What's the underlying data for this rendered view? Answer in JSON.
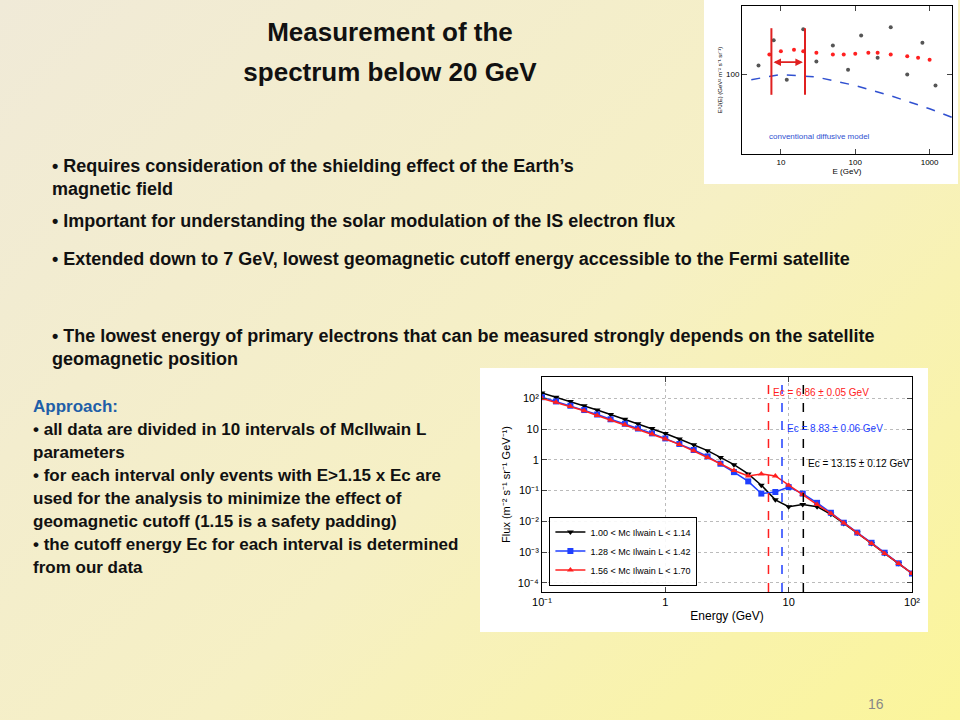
{
  "slide": {
    "title": [
      "Measurement of the",
      "spectrum below 20 GeV"
    ],
    "bullets": [
      "Requires consideration of the shielding effect of the Earth’s magnetic field",
      "Important for understanding the solar modulation of the IS electron flux",
      "Extended down to 7 GeV, lowest geomagnetic cutoff energy accessible to the Fermi satellite",
      "The lowest energy of primary electrons that can be measured strongly depends on the satellite geomagnetic position"
    ],
    "approach": {
      "heading": "Approach:",
      "items": [
        "all data are divided in 10 intervals of McIlwain L parameters",
        "for each interval only events with E>1.15 x Ec are used for the analysis to minimize the effect of geomagnetic cutoff (1.15 is a safety padding)",
        "the cutoff energy Ec for each interval is determined from our data"
      ]
    },
    "page": "16"
  },
  "chart_data": [
    {
      "type": "line",
      "x_label": "Energy (GeV)",
      "y_label": "Flux (m⁻² s⁻¹ sr⁻¹ GeV⁻¹)",
      "log": true,
      "grid": true,
      "legend": "lower left",
      "xlim": [
        0.1,
        100
      ],
      "xticks": [
        {
          "value": 0.1,
          "label": "10⁻¹"
        },
        1,
        10,
        {
          "value": 100,
          "label": "10²"
        }
      ],
      "ylim": [
        5e-05,
        500
      ],
      "yticks": [
        {
          "value": 0.0001,
          "label": "10⁻⁴"
        },
        {
          "value": 0.001,
          "label": "10⁻³"
        },
        {
          "value": 0.01,
          "label": "10⁻²"
        },
        {
          "value": 0.1,
          "label": "10⁻¹"
        },
        1,
        10,
        {
          "value": 100,
          "label": "10²"
        }
      ],
      "x": [
        0.1,
        0.13,
        0.17,
        0.22,
        0.28,
        0.36,
        0.47,
        0.6,
        0.78,
        1,
        1.3,
        1.7,
        2.2,
        2.8,
        3.6,
        4.7,
        6,
        7.8,
        10,
        13,
        17,
        22,
        28,
        36,
        47,
        60,
        78,
        100
      ],
      "series": [
        {
          "name": "1.00 < Mc Ilwain L < 1.14",
          "color": "#000000",
          "marker": "triangle-down",
          "line_style": "solid",
          "values": [
            150,
            110,
            80,
            58,
            42,
            30,
            21,
            15,
            10.5,
            7.2,
            4.8,
            3.1,
            2.0,
            1.2,
            0.7,
            0.35,
            0.15,
            0.05,
            0.03,
            0.035,
            0.03,
            0.017,
            0.0085,
            0.0042,
            0.0019,
            0.0009,
            0.00042,
            0.0002
          ]
        },
        {
          "name": "1.28 < Mc Ilwain L < 1.42",
          "color": "#1f3fff",
          "marker": "square",
          "line_style": "solid",
          "values": [
            110,
            80,
            58,
            42,
            30,
            21,
            15,
            10.5,
            7.3,
            5,
            3.3,
            2.1,
            1.3,
            0.75,
            0.4,
            0.2,
            0.08,
            0.09,
            0.13,
            0.08,
            0.04,
            0.019,
            0.009,
            0.0043,
            0.002,
            0.00095,
            0.00043,
            0.0002
          ]
        },
        {
          "name": "1.56 < Mc Ilwain L < 1.70",
          "color": "#ff2020",
          "marker": "triangle-up",
          "line_style": "solid",
          "values": [
            100,
            75,
            55,
            40,
            28,
            20,
            14,
            10,
            7,
            4.8,
            3.2,
            2.0,
            1.2,
            0.75,
            0.45,
            0.3,
            0.35,
            0.3,
            0.15,
            0.075,
            0.035,
            0.018,
            0.0088,
            0.0042,
            0.0019,
            0.0009,
            0.00042,
            0.0002
          ]
        }
      ],
      "annotations": [
        {
          "text": "Ec = 6.86 ± 0.05 GeV",
          "x": 6.86,
          "color": "#ff2020"
        },
        {
          "text": "Ec = 8.83 ± 0.06 GeV",
          "x": 8.83,
          "color": "#1f3fff"
        },
        {
          "text": "Ec = 13.15 ± 0.12 GeV",
          "x": 13.15,
          "color": "#000000"
        }
      ]
    },
    {
      "type": "scatter",
      "x_label": "E (GeV)",
      "y_label": "E³J(E) (GeV² m⁻² s⁻¹ sr⁻¹)",
      "log": true,
      "grid": false,
      "xlim": [
        3,
        2000
      ],
      "xticks": [
        10,
        100,
        1000
      ],
      "ylim": [
        20,
        400
      ],
      "yticks": [
        100
      ],
      "series": [
        {
          "color": "#555555",
          "marker": "circle",
          "x": [
            5,
            8,
            12,
            20,
            30,
            50,
            80,
            120,
            200,
            300,
            500,
            800,
            1200
          ],
          "values": [
            120,
            200,
            90,
            250,
            130,
            180,
            110,
            220,
            140,
            260,
            100,
            190,
            80
          ]
        },
        {
          "color": "#ff2020",
          "marker": "circle",
          "x": [
            7,
            10,
            15,
            20,
            30,
            50,
            70,
            100,
            150,
            200,
            300,
            500,
            700,
            1000
          ],
          "values": [
            150,
            160,
            165,
            160,
            155,
            150,
            150,
            152,
            155,
            155,
            150,
            145,
            140,
            135
          ]
        },
        {
          "type": "line",
          "color": "#3050d0",
          "line_style": "dash",
          "x": [
            4,
            10,
            30,
            100,
            300,
            1000,
            2000
          ],
          "values": [
            90,
            100,
            95,
            80,
            65,
            50,
            42
          ]
        }
      ],
      "annotations": [
        {
          "text": "conventional diffusive model",
          "color": "#3050d0"
        }
      ]
    }
  ]
}
